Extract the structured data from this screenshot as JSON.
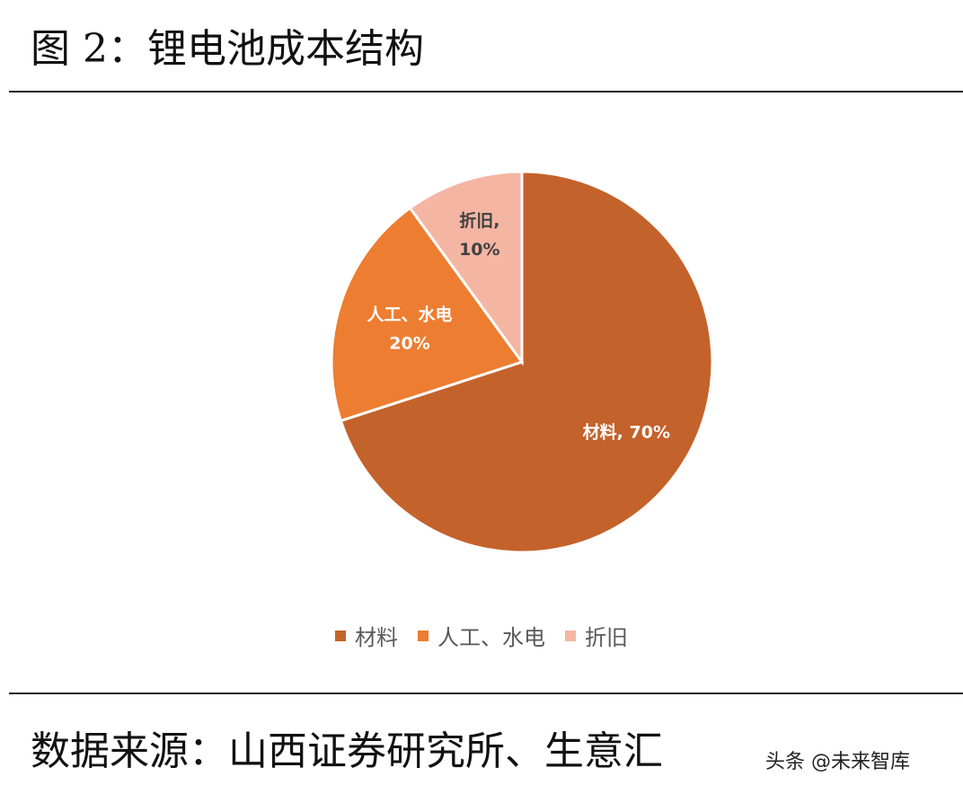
{
  "figure_title": "图 2：锂电池成本结构",
  "source_text": "数据来源：山西证券研究所、生意汇",
  "watermark": "头条 @未来智库",
  "colors": {
    "materials": "#C4622B",
    "labor": "#ED7D31",
    "depreciation": "#F4B6A3",
    "label_dark": "#404040",
    "label_light": "#FFFFFF"
  },
  "chart_data": {
    "type": "pie",
    "title": "",
    "categories": [
      "材料",
      "人工、水电",
      "折旧"
    ],
    "values": [
      70,
      20,
      10
    ],
    "unit": "%",
    "start_angle_deg": 0,
    "direction": "clockwise",
    "data_labels": [
      {
        "line1": "材料, 70%",
        "line2": ""
      },
      {
        "line1": "人工、水电",
        "line2": "20%"
      },
      {
        "line1": "折旧,",
        "line2": "10%"
      }
    ],
    "legend": {
      "position": "bottom",
      "entries": [
        "材料",
        "人工、水电",
        "折旧"
      ]
    }
  }
}
